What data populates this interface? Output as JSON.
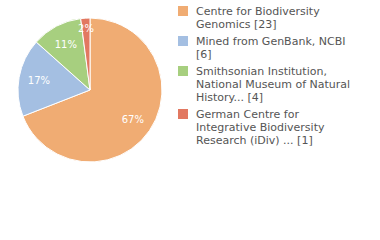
{
  "chart_data": {
    "type": "pie",
    "categories": [
      "Centre for Biodiversity Genomics [23]",
      "Mined from GenBank, NCBI [6]",
      "Smithsonian Institution, National Museum of Natural History... [4]",
      "German Centre for Integrative Biodiversity Research (iDiv) ... [1]"
    ],
    "values": [
      67,
      17,
      11,
      2
    ],
    "value_labels": [
      "67%",
      "17%",
      "11%",
      "2%"
    ],
    "colors": [
      "#f0ac73",
      "#a4bfe2",
      "#a7cf7f",
      "#e27861"
    ],
    "data_labels": true,
    "legend": "right"
  }
}
